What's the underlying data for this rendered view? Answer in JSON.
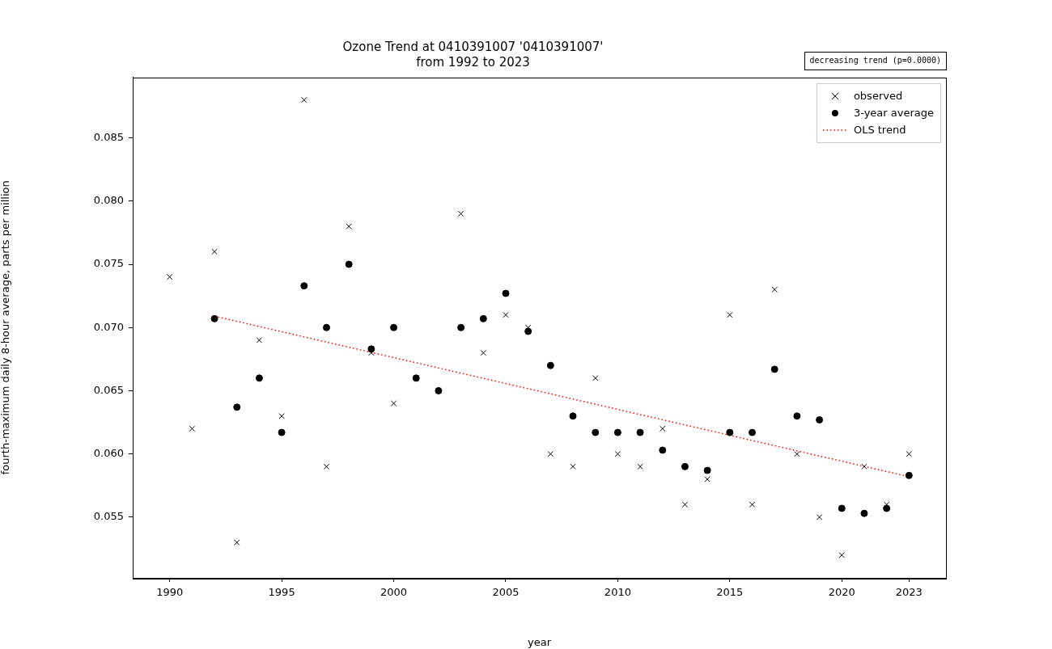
{
  "chart_data": {
    "type": "scatter",
    "title": "Ozone Trend at 0410391007 '0410391007'\nfrom 1992 to 2023",
    "annotations": [
      "decreasing trend (p=0.0000)"
    ],
    "x_label": "year",
    "y_label": "fourth-maximum daily 8-hour average, parts per million",
    "xlim": [
      1988.35,
      2024.65
    ],
    "xticks": [
      1990,
      1995,
      2000,
      2005,
      2010,
      2015,
      2020,
      2023
    ],
    "ylim": [
      0.0502,
      0.0898
    ],
    "yticks": [
      0.055,
      {
        "value": 0.06,
        "label": "0.060"
      },
      0.065,
      {
        "value": 0.07,
        "label": "0.070"
      },
      0.075,
      {
        "value": 0.08,
        "label": "0.080"
      },
      0.085
    ],
    "grid": false,
    "legend": "upper right",
    "series": [
      {
        "name": "observed",
        "type": "scatter",
        "marker": "x",
        "color": "black",
        "x": [
          1990,
          1991,
          1992,
          1993,
          1994,
          1995,
          1996,
          1997,
          1998,
          1999,
          2000,
          2001,
          2002,
          2003,
          2004,
          2005,
          2006,
          2007,
          2008,
          2009,
          2010,
          2011,
          2012,
          2013,
          2014,
          2015,
          2016,
          2017,
          2018,
          2019,
          2020,
          2021,
          2022,
          2023
        ],
        "values": [
          0.074,
          0.062,
          0.076,
          0.053,
          0.069,
          0.063,
          0.088,
          0.059,
          0.078,
          0.068,
          0.064,
          0.066,
          0.065,
          0.079,
          0.068,
          0.071,
          0.07,
          0.06,
          0.059,
          0.066,
          0.06,
          0.059,
          0.062,
          0.056,
          0.058,
          0.071,
          0.056,
          0.073,
          0.06,
          0.055,
          0.052,
          0.059,
          0.056,
          0.06
        ]
      },
      {
        "name": "3-year average",
        "type": "scatter",
        "marker": "o",
        "color": "black",
        "x": [
          1992,
          1993,
          1994,
          1995,
          1996,
          1997,
          1998,
          1999,
          2000,
          2001,
          2002,
          2003,
          2004,
          2005,
          2006,
          2007,
          2008,
          2009,
          2010,
          2011,
          2012,
          2013,
          2014,
          2015,
          2016,
          2017,
          2018,
          2019,
          2020,
          2021,
          2022,
          2023
        ],
        "values": [
          0.0707,
          0.0637,
          0.066,
          0.0617,
          0.0733,
          0.07,
          0.075,
          0.0683,
          0.07,
          0.066,
          0.065,
          0.07,
          0.0707,
          0.0727,
          0.0697,
          0.067,
          0.063,
          0.0617,
          0.0617,
          0.0617,
          0.0603,
          0.059,
          0.0587,
          0.0617,
          0.0617,
          0.0667,
          0.063,
          0.0627,
          0.0557,
          0.0553,
          0.0557,
          0.0583
        ]
      },
      {
        "name": "OLS trend",
        "type": "line",
        "line_style": "dotted",
        "color": "red",
        "x": [
          1992,
          2023
        ],
        "values": [
          0.0709,
          0.0582
        ]
      }
    ]
  }
}
